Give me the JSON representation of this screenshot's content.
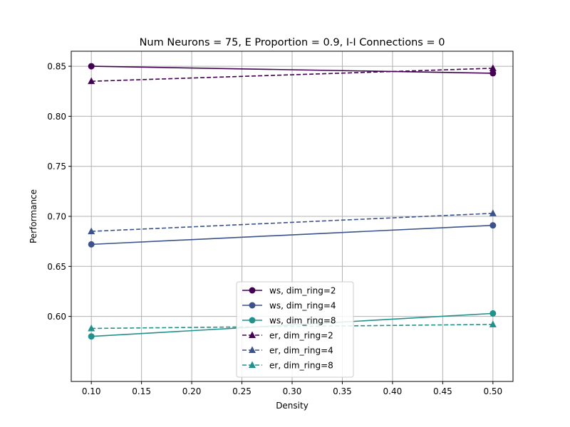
{
  "chart_data": {
    "type": "line",
    "title": "Num Neurons = 75, E Proportion = 0.9, I-I Connections = 0",
    "xlabel": "Density",
    "ylabel": "Performance",
    "xlim": [
      0.08,
      0.52
    ],
    "ylim": [
      0.535,
      0.865
    ],
    "xticks": [
      0.1,
      0.15,
      0.2,
      0.25,
      0.3,
      0.35,
      0.4,
      0.45,
      0.5
    ],
    "xtick_labels": [
      "0.10",
      "0.15",
      "0.20",
      "0.25",
      "0.30",
      "0.35",
      "0.40",
      "0.45",
      "0.50"
    ],
    "yticks": [
      0.6,
      0.65,
      0.7,
      0.75,
      0.8,
      0.85
    ],
    "ytick_labels": [
      "0.60",
      "0.65",
      "0.70",
      "0.75",
      "0.80",
      "0.85"
    ],
    "grid": true,
    "legend_position": "lower-center",
    "series": [
      {
        "name": "ws, dim_ring=2",
        "x": [
          0.1,
          0.5
        ],
        "values": [
          0.85,
          0.843
        ],
        "color": "#440154",
        "linestyle": "solid",
        "marker": "circle"
      },
      {
        "name": "ws, dim_ring=4",
        "x": [
          0.1,
          0.5
        ],
        "values": [
          0.672,
          0.691
        ],
        "color": "#3b528b",
        "linestyle": "solid",
        "marker": "circle"
      },
      {
        "name": "ws, dim_ring=8",
        "x": [
          0.1,
          0.5
        ],
        "values": [
          0.58,
          0.603
        ],
        "color": "#21918c",
        "linestyle": "solid",
        "marker": "circle"
      },
      {
        "name": "er, dim_ring=2",
        "x": [
          0.1,
          0.5
        ],
        "values": [
          0.835,
          0.848
        ],
        "color": "#440154",
        "linestyle": "dashed",
        "marker": "triangle"
      },
      {
        "name": "er, dim_ring=4",
        "x": [
          0.1,
          0.5
        ],
        "values": [
          0.685,
          0.703
        ],
        "color": "#3b528b",
        "linestyle": "dashed",
        "marker": "triangle"
      },
      {
        "name": "er, dim_ring=8",
        "x": [
          0.1,
          0.5
        ],
        "values": [
          0.588,
          0.592
        ],
        "color": "#21918c",
        "linestyle": "dashed",
        "marker": "triangle"
      }
    ]
  }
}
